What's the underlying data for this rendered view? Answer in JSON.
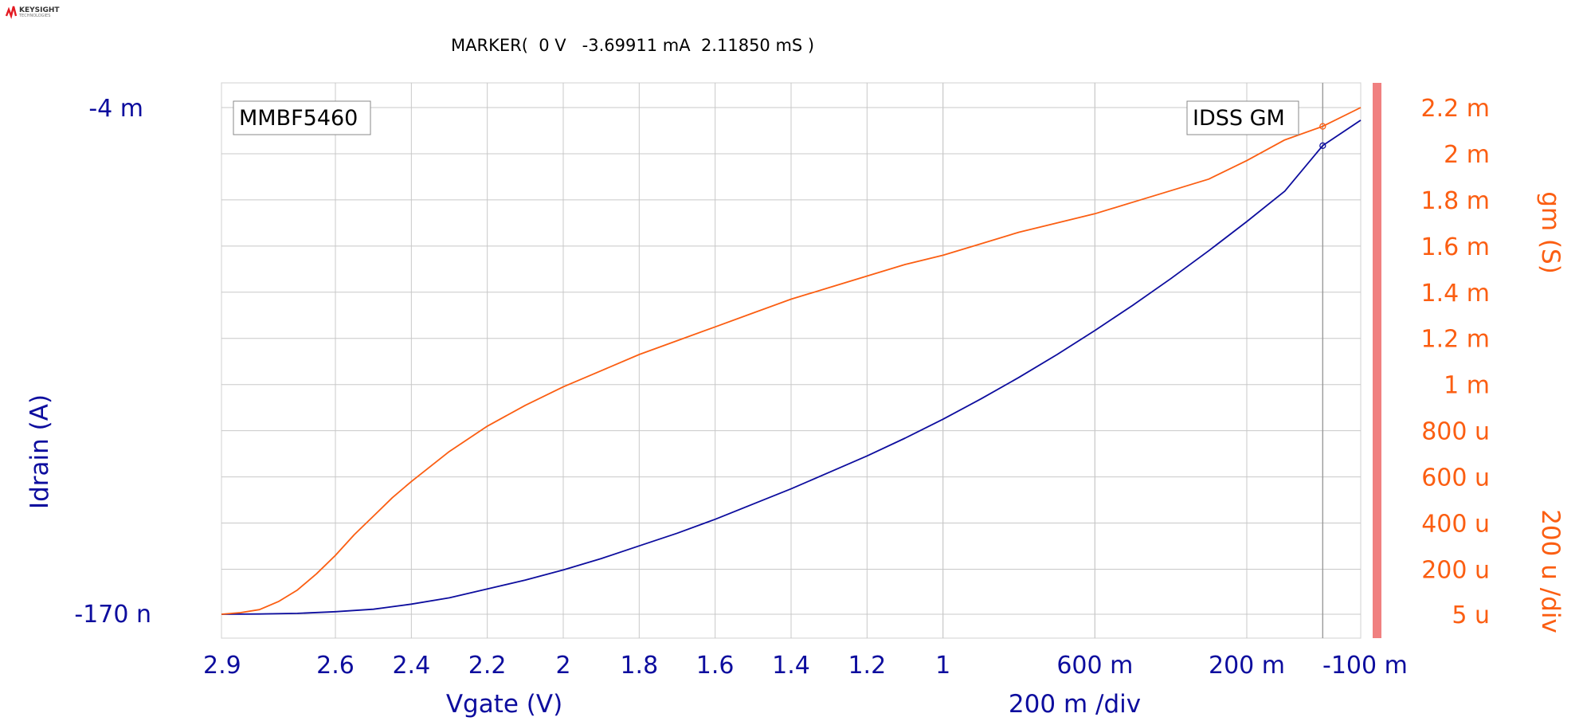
{
  "logo": {
    "name": "KEYSIGHT",
    "sub": "TECHNOLOGIES"
  },
  "marker_readout": "MARKER(  0 V   -3.69911 mA  2.11850 mS )",
  "device_label": "MMBF5460",
  "trace_label": "IDSS GM",
  "colors": {
    "idrain": "#0d0d9e",
    "gm": "#fb5e12",
    "grid": "#c8c8c8",
    "right_bar": "#f08080",
    "marker_line": "#999999"
  },
  "chart_data": {
    "type": "line",
    "x": {
      "label": "Vgate (V)",
      "div_label": "200 m /div",
      "range": [
        2.9,
        -0.1
      ],
      "ticks": [
        2.9,
        2.6,
        2.4,
        2.2,
        2.0,
        1.8,
        1.6,
        1.4,
        1.2,
        1.0,
        0.6,
        0.2,
        -0.1
      ],
      "tick_labels": [
        "2.9",
        "2.6",
        "2.4",
        "2.2",
        "2",
        "1.8",
        "1.6",
        "1.4",
        "1.2",
        "1",
        "600 m",
        "200 m",
        "-100 m"
      ]
    },
    "y_left": {
      "label": "Idrain (A)",
      "top_label": "-4 m",
      "bottom_label": "-170 n",
      "range": [
        -1.7e-07,
        -0.004
      ]
    },
    "y_right": {
      "label": "gm (S)",
      "div_label": "200 u /div",
      "range": [
        5e-06,
        0.0022
      ],
      "ticks": [
        0.0022,
        0.002,
        0.0018,
        0.0016,
        0.0014,
        0.0012,
        0.001,
        0.0008,
        0.0006,
        0.0004,
        0.0002,
        5e-06
      ],
      "tick_labels": [
        "2.2 m",
        "2 m",
        "1.8 m",
        "1.6 m",
        "1.4 m",
        "1.2 m",
        "1 m",
        "800 u",
        "600 u",
        "400 u",
        "200 u",
        "5 u"
      ]
    },
    "series": [
      {
        "name": "Idrain",
        "axis": "left",
        "x": [
          2.9,
          2.8,
          2.7,
          2.6,
          2.5,
          2.4,
          2.3,
          2.2,
          2.1,
          2.0,
          1.9,
          1.8,
          1.7,
          1.6,
          1.5,
          1.4,
          1.3,
          1.2,
          1.1,
          1.0,
          0.9,
          0.8,
          0.7,
          0.6,
          0.5,
          0.4,
          0.3,
          0.2,
          0.1,
          0.0,
          -0.1
        ],
        "y": [
          -1.7e-07,
          -2e-06,
          -7e-06,
          -2e-05,
          -4e-05,
          -8e-05,
          -0.00013,
          -0.0002,
          -0.00027,
          -0.00035,
          -0.00044,
          -0.00054,
          -0.00064,
          -0.00075,
          -0.00087,
          -0.00099,
          -0.00112,
          -0.00125,
          -0.00139,
          -0.00154,
          -0.0017,
          -0.00187,
          -0.00205,
          -0.00224,
          -0.00244,
          -0.00265,
          -0.00287,
          -0.0031,
          -0.00334,
          -0.0036991,
          -0.0039
        ]
      },
      {
        "name": "gm",
        "axis": "right",
        "x": [
          2.9,
          2.85,
          2.8,
          2.75,
          2.7,
          2.65,
          2.6,
          2.55,
          2.5,
          2.45,
          2.4,
          2.3,
          2.2,
          2.1,
          2.0,
          1.9,
          1.8,
          1.7,
          1.6,
          1.5,
          1.4,
          1.3,
          1.2,
          1.1,
          1.0,
          0.9,
          0.8,
          0.7,
          0.6,
          0.5,
          0.4,
          0.3,
          0.2,
          0.1,
          0.0,
          -0.1
        ],
        "y": [
          5e-06,
          1.2e-05,
          2.5e-05,
          6e-05,
          0.00011,
          0.00018,
          0.00026,
          0.00035,
          0.00043,
          0.00051,
          0.00058,
          0.00071,
          0.00082,
          0.00091,
          0.00099,
          0.00106,
          0.00113,
          0.00119,
          0.00125,
          0.00131,
          0.00137,
          0.00142,
          0.00147,
          0.00152,
          0.00156,
          0.00161,
          0.00166,
          0.0017,
          0.00174,
          0.00179,
          0.00184,
          0.00189,
          0.00197,
          0.00206,
          0.0021185,
          0.0022
        ]
      }
    ],
    "marker": {
      "x": 0.0,
      "idrain": -0.0036991,
      "gm": 0.0021185
    }
  }
}
